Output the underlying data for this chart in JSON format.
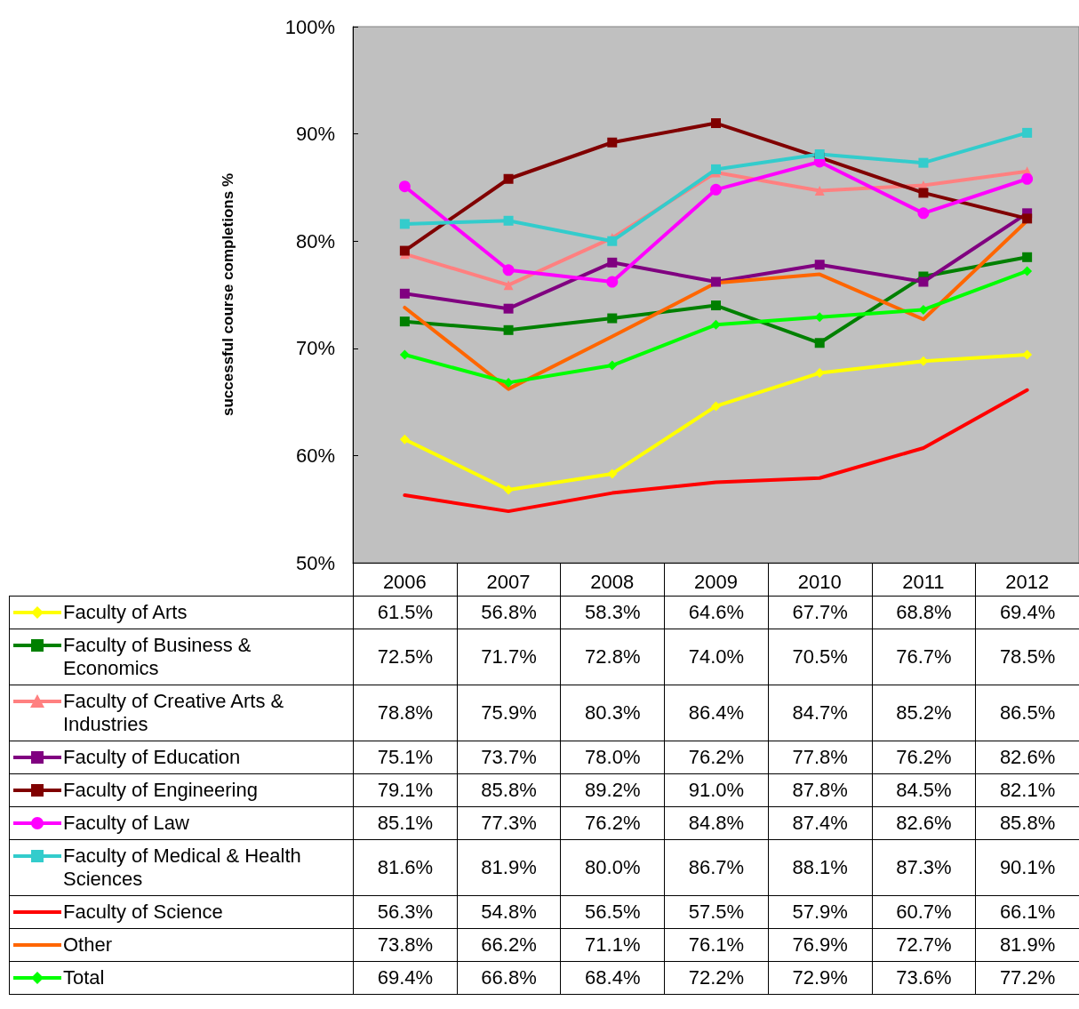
{
  "chart_data": {
    "type": "line",
    "ylabel": "successful course completions %",
    "categories": [
      "2006",
      "2007",
      "2008",
      "2009",
      "2010",
      "2011",
      "2012"
    ],
    "ylim": [
      50,
      100
    ],
    "yticks": [
      {
        "value": 50,
        "label": "50%"
      },
      {
        "value": 60,
        "label": "60%"
      },
      {
        "value": 70,
        "label": "70%"
      },
      {
        "value": 80,
        "label": "80%"
      },
      {
        "value": 90,
        "label": "90%"
      },
      {
        "value": 100,
        "label": "100%"
      }
    ],
    "grid": false,
    "legend": "bottom",
    "series": [
      {
        "name": "Faculty of Arts",
        "color": "#ffff00",
        "marker": "diamond",
        "values": [
          61.5,
          56.8,
          58.3,
          64.6,
          67.7,
          68.8,
          69.4
        ],
        "value_labels": [
          "61.5%",
          "56.8%",
          "58.3%",
          "64.6%",
          "67.7%",
          "68.8%",
          "69.4%"
        ]
      },
      {
        "name": "Faculty of Business & Economics",
        "color": "#008000",
        "marker": "square",
        "values": [
          72.5,
          71.7,
          72.8,
          74.0,
          70.5,
          76.7,
          78.5
        ],
        "value_labels": [
          "72.5%",
          "71.7%",
          "72.8%",
          "74.0%",
          "70.5%",
          "76.7%",
          "78.5%"
        ]
      },
      {
        "name": "Faculty of Creative Arts & Industries",
        "color": "#ff8080",
        "marker": "triangle",
        "values": [
          78.8,
          75.9,
          80.3,
          86.4,
          84.7,
          85.2,
          86.5
        ],
        "value_labels": [
          "78.8%",
          "75.9%",
          "80.3%",
          "86.4%",
          "84.7%",
          "85.2%",
          "86.5%"
        ]
      },
      {
        "name": "Faculty of Education",
        "color": "#800080",
        "marker": "square",
        "values": [
          75.1,
          73.7,
          78.0,
          76.2,
          77.8,
          76.2,
          82.6
        ],
        "value_labels": [
          "75.1%",
          "73.7%",
          "78.0%",
          "76.2%",
          "77.8%",
          "76.2%",
          "82.6%"
        ]
      },
      {
        "name": "Faculty of Engineering",
        "color": "#800000",
        "marker": "square",
        "values": [
          79.1,
          85.8,
          89.2,
          91.0,
          87.8,
          84.5,
          82.1
        ],
        "value_labels": [
          "79.1%",
          "85.8%",
          "89.2%",
          "91.0%",
          "87.8%",
          "84.5%",
          "82.1%"
        ]
      },
      {
        "name": "Faculty of Law",
        "color": "#ff00ff",
        "marker": "circle",
        "values": [
          85.1,
          77.3,
          76.2,
          84.8,
          87.4,
          82.6,
          85.8
        ],
        "value_labels": [
          "85.1%",
          "77.3%",
          "76.2%",
          "84.8%",
          "87.4%",
          "82.6%",
          "85.8%"
        ]
      },
      {
        "name": "Faculty of Medical & Health Sciences",
        "color": "#33cccc",
        "marker": "square",
        "values": [
          81.6,
          81.9,
          80.0,
          86.7,
          88.1,
          87.3,
          90.1
        ],
        "value_labels": [
          "81.6%",
          "81.9%",
          "80.0%",
          "86.7%",
          "88.1%",
          "87.3%",
          "90.1%"
        ]
      },
      {
        "name": "Faculty of Science",
        "color": "#ff0000",
        "marker": "none",
        "values": [
          56.3,
          54.8,
          56.5,
          57.5,
          57.9,
          60.7,
          66.1
        ],
        "value_labels": [
          "56.3%",
          "54.8%",
          "56.5%",
          "57.5%",
          "57.9%",
          "60.7%",
          "66.1%"
        ]
      },
      {
        "name": "Other",
        "color": "#ff6600",
        "marker": "none",
        "values": [
          73.8,
          66.2,
          71.1,
          76.1,
          76.9,
          72.7,
          81.9
        ],
        "value_labels": [
          "73.8%",
          "66.2%",
          "71.1%",
          "76.1%",
          "76.9%",
          "72.7%",
          "81.9%"
        ]
      },
      {
        "name": "Total",
        "color": "#00ff00",
        "marker": "diamond",
        "values": [
          69.4,
          66.8,
          68.4,
          72.2,
          72.9,
          73.6,
          77.2
        ],
        "value_labels": [
          "69.4%",
          "66.8%",
          "68.4%",
          "72.2%",
          "72.9%",
          "73.6%",
          "77.2%"
        ]
      }
    ]
  }
}
